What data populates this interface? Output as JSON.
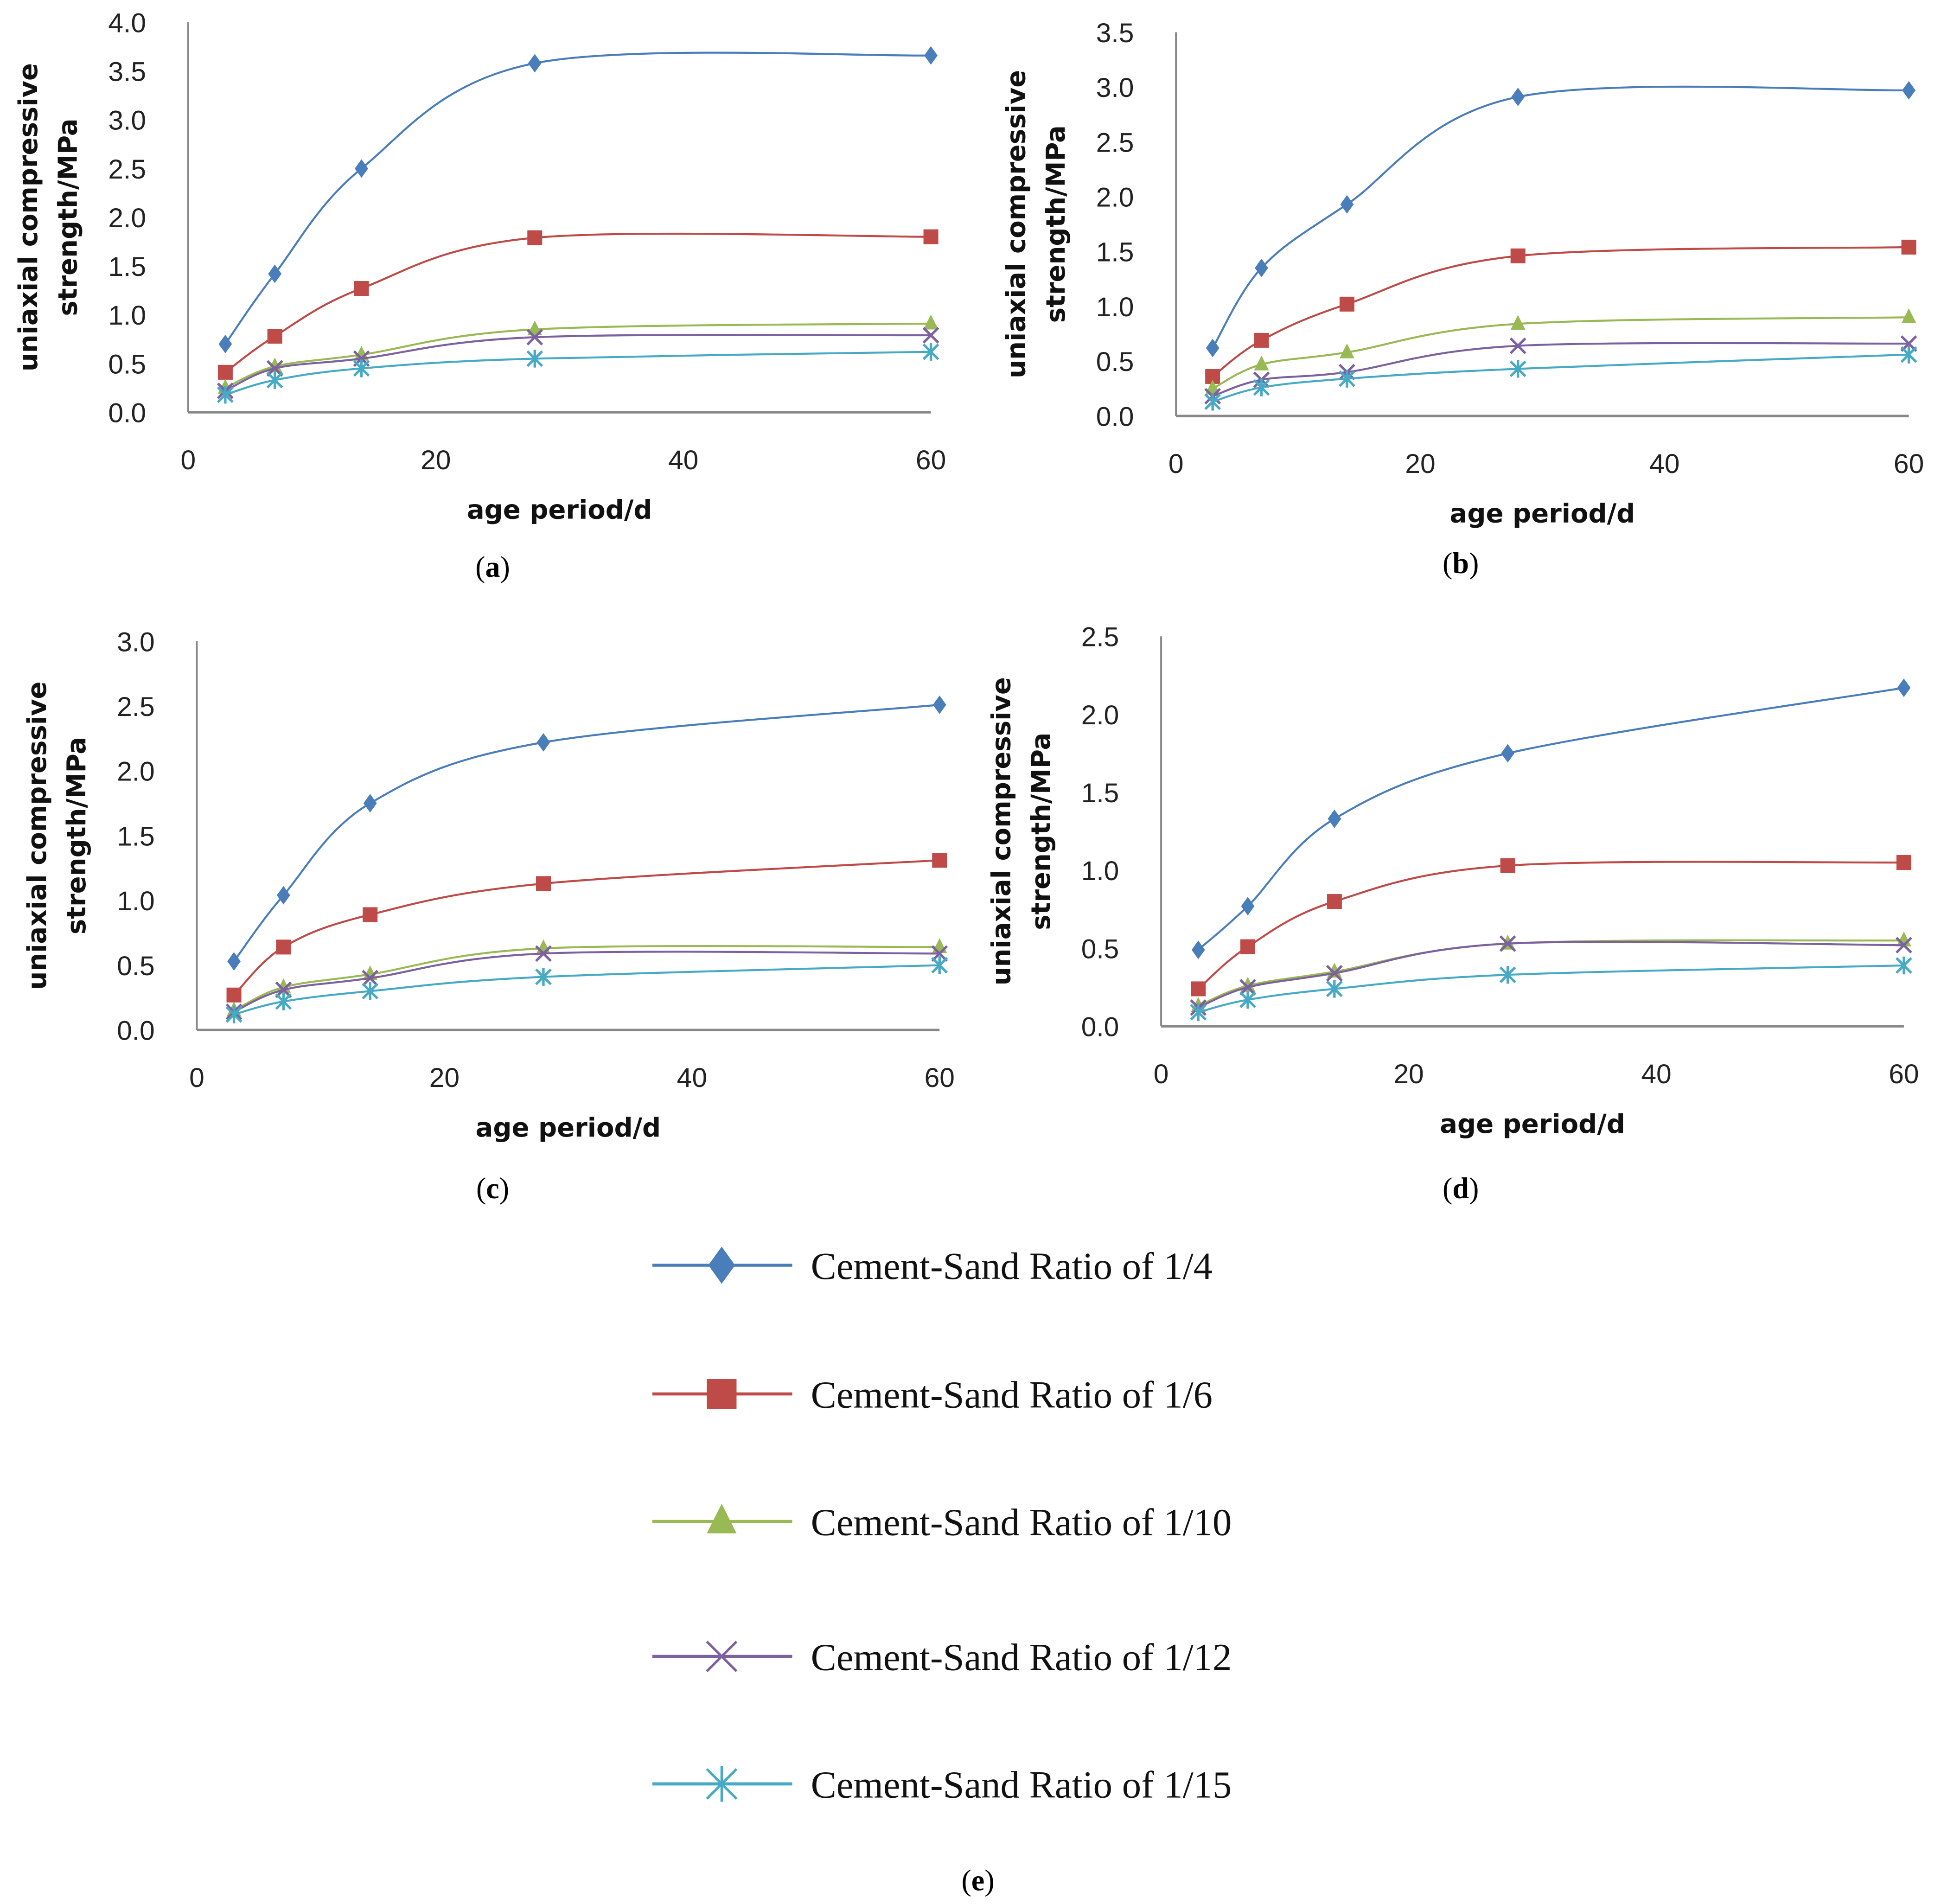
{
  "chart_data": [
    {
      "type": "line",
      "panel": "a",
      "xlabel": "age period/d",
      "ylabel": [
        "uniaxial compressive",
        "strength/MPa"
      ],
      "xlim": [
        0,
        60
      ],
      "ylim": [
        0,
        4.0
      ],
      "xticks": [
        0,
        20,
        40,
        60
      ],
      "ystep": 0.5,
      "grid": false,
      "x": [
        3,
        7,
        14,
        28,
        60
      ],
      "series": [
        {
          "name": "Cement-Sand Ratio of 1/4",
          "values": [
            0.7,
            1.42,
            2.5,
            3.58,
            3.66
          ]
        },
        {
          "name": "Cement-Sand Ratio of 1/6",
          "values": [
            0.41,
            0.78,
            1.27,
            1.79,
            1.8
          ]
        },
        {
          "name": "Cement-Sand Ratio of 1/10",
          "values": [
            0.25,
            0.47,
            0.59,
            0.85,
            0.91
          ]
        },
        {
          "name": "Cement-Sand Ratio of 1/12",
          "values": [
            0.22,
            0.45,
            0.55,
            0.77,
            0.79
          ]
        },
        {
          "name": "Cement-Sand Ratio of 1/15",
          "values": [
            0.18,
            0.33,
            0.45,
            0.55,
            0.62
          ]
        }
      ]
    },
    {
      "type": "line",
      "panel": "b",
      "xlabel": "age period/d",
      "ylabel": [
        "uniaxial compressive",
        "strength/MPa"
      ],
      "xlim": [
        0,
        60
      ],
      "ylim": [
        0,
        3.5
      ],
      "xticks": [
        0,
        20,
        40,
        60
      ],
      "ystep": 0.5,
      "grid": false,
      "x": [
        3,
        7,
        14,
        28,
        60
      ],
      "series": [
        {
          "name": "Cement-Sand Ratio of 1/4",
          "values": [
            0.62,
            1.35,
            1.93,
            2.91,
            2.97
          ]
        },
        {
          "name": "Cement-Sand Ratio of 1/6",
          "values": [
            0.36,
            0.69,
            1.02,
            1.46,
            1.54
          ]
        },
        {
          "name": "Cement-Sand Ratio of 1/10",
          "values": [
            0.25,
            0.47,
            0.58,
            0.84,
            0.9
          ]
        },
        {
          "name": "Cement-Sand Ratio of 1/12",
          "values": [
            0.18,
            0.33,
            0.4,
            0.64,
            0.66
          ]
        },
        {
          "name": "Cement-Sand Ratio of 1/15",
          "values": [
            0.13,
            0.26,
            0.34,
            0.43,
            0.56
          ]
        }
      ]
    },
    {
      "type": "line",
      "panel": "c",
      "xlabel": "age period/d",
      "ylabel": [
        "uniaxial compressive",
        "strength/MPa"
      ],
      "xlim": [
        0,
        60
      ],
      "ylim": [
        0,
        3.0
      ],
      "xticks": [
        0,
        20,
        40,
        60
      ],
      "ystep": 0.5,
      "grid": false,
      "x": [
        3,
        7,
        14,
        28,
        60
      ],
      "series": [
        {
          "name": "Cement-Sand Ratio of 1/4",
          "values": [
            0.53,
            1.04,
            1.75,
            2.22,
            2.51
          ]
        },
        {
          "name": "Cement-Sand Ratio of 1/6",
          "values": [
            0.27,
            0.64,
            0.89,
            1.13,
            1.31
          ]
        },
        {
          "name": "Cement-Sand Ratio of 1/10",
          "values": [
            0.15,
            0.33,
            0.43,
            0.63,
            0.64
          ]
        },
        {
          "name": "Cement-Sand Ratio of 1/12",
          "values": [
            0.14,
            0.31,
            0.4,
            0.59,
            0.59
          ]
        },
        {
          "name": "Cement-Sand Ratio of 1/15",
          "values": [
            0.12,
            0.22,
            0.3,
            0.41,
            0.5
          ]
        }
      ]
    },
    {
      "type": "line",
      "panel": "d",
      "xlabel": "age period/d",
      "ylabel": [
        "uniaxial compressive",
        "strength/MPa"
      ],
      "xlim": [
        0,
        60
      ],
      "ylim": [
        0,
        2.5
      ],
      "xticks": [
        0,
        20,
        40,
        60
      ],
      "ystep": 0.5,
      "grid": false,
      "x": [
        3,
        7,
        14,
        28,
        60
      ],
      "series": [
        {
          "name": "Cement-Sand Ratio of 1/4",
          "values": [
            0.49,
            0.77,
            1.33,
            1.75,
            2.17
          ]
        },
        {
          "name": "Cement-Sand Ratio of 1/6",
          "values": [
            0.24,
            0.51,
            0.8,
            1.03,
            1.05
          ]
        },
        {
          "name": "Cement-Sand Ratio of 1/10",
          "values": [
            0.13,
            0.26,
            0.35,
            0.53,
            0.55
          ]
        },
        {
          "name": "Cement-Sand Ratio of 1/12",
          "values": [
            0.12,
            0.25,
            0.34,
            0.53,
            0.52
          ]
        },
        {
          "name": "Cement-Sand Ratio of 1/15",
          "values": [
            0.09,
            0.17,
            0.24,
            0.33,
            0.39
          ]
        }
      ]
    }
  ],
  "legend": {
    "panel": "e",
    "placement": "bottom-center",
    "items": [
      {
        "label": "Cement-Sand Ratio of 1/4",
        "marker": "diamond",
        "color": "#4a7ebb"
      },
      {
        "label": "Cement-Sand Ratio of 1/6",
        "marker": "square",
        "color": "#be4b48"
      },
      {
        "label": "Cement-Sand Ratio of 1/10",
        "marker": "triangle",
        "color": "#98b954"
      },
      {
        "label": "Cement-Sand Ratio of 1/12",
        "marker": "x",
        "color": "#7d60a0"
      },
      {
        "label": "Cement-Sand Ratio of 1/15",
        "marker": "asterisk",
        "color": "#46aac5"
      }
    ]
  }
}
